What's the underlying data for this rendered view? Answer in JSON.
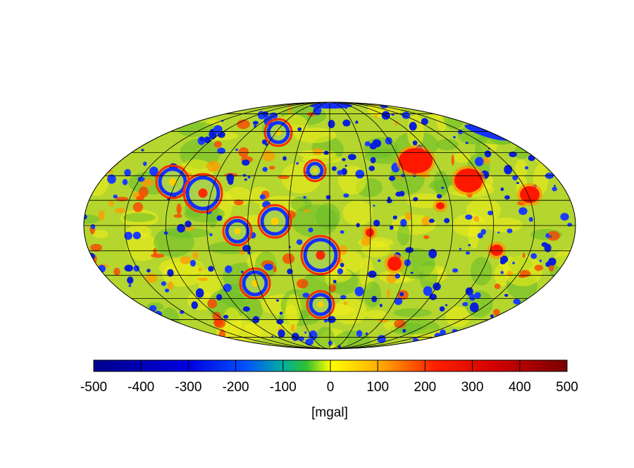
{
  "map": {
    "projection": "mollweide",
    "grid": {
      "meridian_step_deg": 30,
      "parallel_step_deg": 15
    },
    "palette": [
      "#00008b",
      "#0000ff",
      "#1e90ff",
      "#32cd32",
      "#7fc832",
      "#ffff00",
      "#ffa500",
      "#ff0000",
      "#8b0000"
    ]
  },
  "colorbar": {
    "min": -500,
    "max": 500,
    "ticks": [
      "-500",
      "-400",
      "-300",
      "-200",
      "-100",
      "0",
      "100",
      "200",
      "300",
      "400",
      "500"
    ],
    "unit": "[mgal]"
  }
}
